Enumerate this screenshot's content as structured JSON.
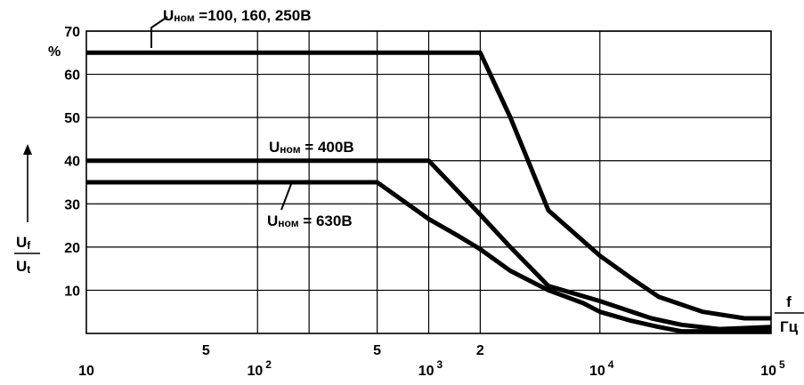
{
  "chart_data": {
    "type": "line",
    "x_scale": "log",
    "xlim": [
      10,
      100000
    ],
    "ylim": [
      0,
      70
    ],
    "grid": true,
    "y_ticks": [
      10,
      20,
      30,
      40,
      50,
      60,
      70
    ],
    "y_unit": "%",
    "ylabel": {
      "num_main": "U",
      "num_sub": "f",
      "den_main": "U",
      "den_sub": "t"
    },
    "xlabel": {
      "num": "f",
      "den": "Гц"
    },
    "x_vertical_gridlines": [
      100,
      200,
      500,
      1000,
      2000,
      10000
    ],
    "x_tick_labels": [
      {
        "x": 10,
        "main": "10",
        "sup": "",
        "row": "low"
      },
      {
        "x": 50,
        "main": "5",
        "sup": "",
        "row": "high"
      },
      {
        "x": 100,
        "main": "10",
        "sup": "2",
        "row": "low"
      },
      {
        "x": 500,
        "main": "5",
        "sup": "",
        "row": "high"
      },
      {
        "x": 1000,
        "main": "10",
        "sup": "3",
        "row": "low"
      },
      {
        "x": 2000,
        "main": "2",
        "sup": "",
        "row": "high"
      },
      {
        "x": 10000,
        "main": "10",
        "sup": "4",
        "row": "low"
      },
      {
        "x": 100000,
        "main": "10",
        "sup": "5",
        "row": "low"
      }
    ],
    "series": [
      {
        "label_main": "U",
        "label_sub": "ном",
        "label_rest": " =100,  160,   250В",
        "points": [
          [
            10,
            65
          ],
          [
            2000,
            65
          ],
          [
            3000,
            50
          ],
          [
            5000,
            28.5
          ],
          [
            10000,
            18
          ],
          [
            15000,
            13
          ],
          [
            22000,
            8.5
          ],
          [
            40000,
            5
          ],
          [
            70000,
            3.5
          ],
          [
            100000,
            3.5
          ]
        ]
      },
      {
        "label_main": "U",
        "label_sub": "ном",
        "label_rest": " = 400В",
        "points": [
          [
            10,
            40
          ],
          [
            1000,
            40
          ],
          [
            2000,
            27.5
          ],
          [
            3000,
            20
          ],
          [
            5000,
            11
          ],
          [
            10000,
            7.5
          ],
          [
            20000,
            3.5
          ],
          [
            30000,
            2
          ],
          [
            50000,
            1
          ],
          [
            100000,
            1.5
          ]
        ]
      },
      {
        "label_main": "U",
        "label_sub": "ном",
        "label_rest": " = 630В",
        "points": [
          [
            10,
            35
          ],
          [
            500,
            35
          ],
          [
            1000,
            26.5
          ],
          [
            1500,
            22.5
          ],
          [
            2000,
            19.5
          ],
          [
            3000,
            14.5
          ],
          [
            5000,
            10
          ],
          [
            8000,
            7
          ],
          [
            10000,
            5
          ],
          [
            15000,
            3
          ],
          [
            22000,
            1.5
          ],
          [
            30000,
            0.5
          ],
          [
            100000,
            0.5
          ]
        ]
      }
    ]
  }
}
